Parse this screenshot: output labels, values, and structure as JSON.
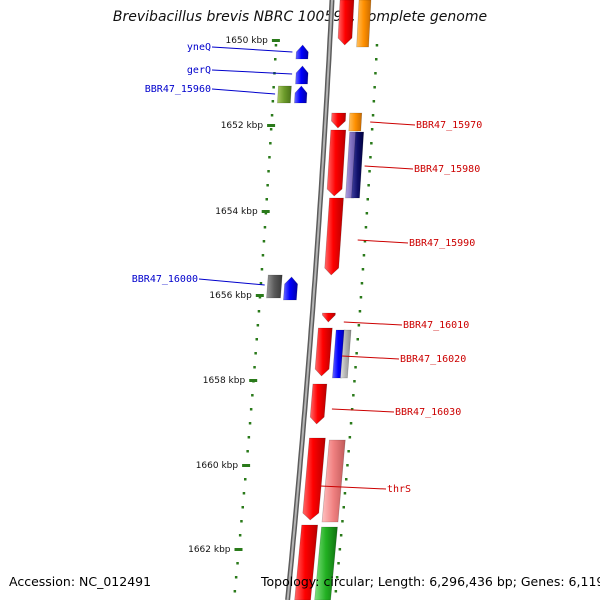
{
  "title": "Brevibacillus brevis NBRC 100599, complete genome",
  "footer": {
    "accession": "Accession: NC_012491",
    "summary": "Topology: circular; Length: 6,296,436 bp; Genes: 6,119"
  },
  "colors": {
    "forward_label": "#0000cc",
    "reverse_label": "#cc0000",
    "tick": "#2a7a1a",
    "backbone": "#8c8c8c"
  },
  "kbp_labels": [
    "1650 kbp",
    "1652 kbp",
    "1654 kbp",
    "1656 kbp",
    "1658 kbp",
    "1660 kbp",
    "1662 kbp"
  ],
  "forward_genes": [
    {
      "name": "yneQ"
    },
    {
      "name": "gerQ"
    },
    {
      "name": "BBR47_15960"
    },
    {
      "name": "BBR47_16000"
    }
  ],
  "reverse_genes": [
    {
      "name": "BBR47_15970"
    },
    {
      "name": "BBR47_15980"
    },
    {
      "name": "BBR47_15990"
    },
    {
      "name": "BBR47_16010"
    },
    {
      "name": "BBR47_16020"
    },
    {
      "name": "BBR47_16030"
    },
    {
      "name": "thrS"
    }
  ]
}
